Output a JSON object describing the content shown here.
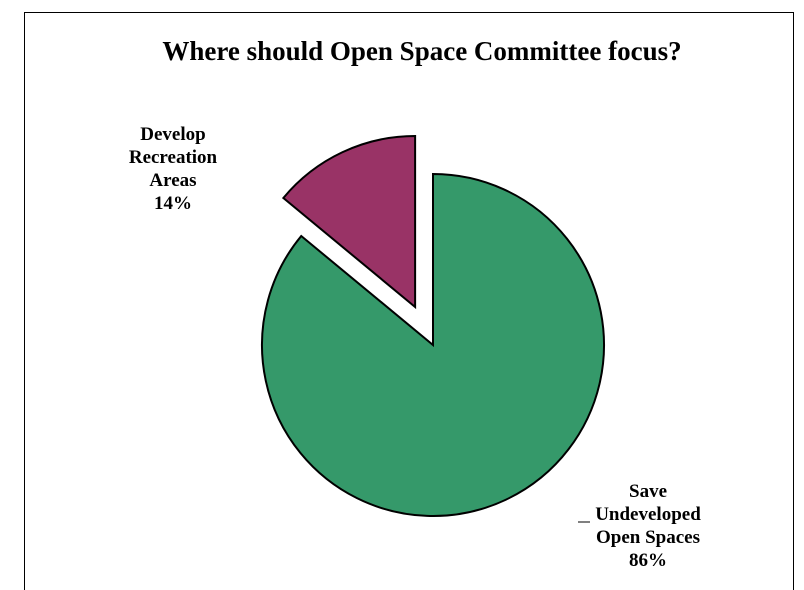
{
  "chart_data": {
    "type": "pie",
    "title": "Where should Open Space Committee focus?",
    "slices": [
      {
        "label_lines": [
          "Save",
          "Undeveloped",
          "Open Spaces",
          "86%"
        ],
        "value": 86,
        "color": "#35996a",
        "exploded": false
      },
      {
        "label_lines": [
          "Develop",
          "Recreation",
          "Areas",
          "14%"
        ],
        "value": 14,
        "color": "#993366",
        "exploded": true
      }
    ],
    "legend": "none",
    "grid": false
  }
}
